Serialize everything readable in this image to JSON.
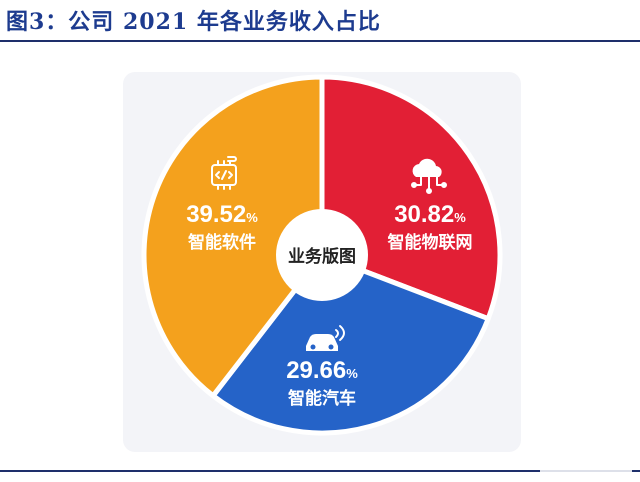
{
  "figure": {
    "title": "图3：公司 2021 年各业务收入占比"
  },
  "chart_data": {
    "type": "pie",
    "center_label": "业务版图",
    "unit": "%",
    "slices": [
      {
        "name": "智能物联网",
        "value": 30.82,
        "value_text": "30.82",
        "color": "#e21f35",
        "icon": "cloud-network-icon"
      },
      {
        "name": "智能汽车",
        "value": 29.66,
        "value_text": "29.66",
        "color": "#2563c8",
        "icon": "car-signal-icon"
      },
      {
        "name": "智能软件",
        "value": 39.52,
        "value_text": "39.52",
        "color": "#f4a11d",
        "icon": "code-chip-icon"
      }
    ]
  }
}
